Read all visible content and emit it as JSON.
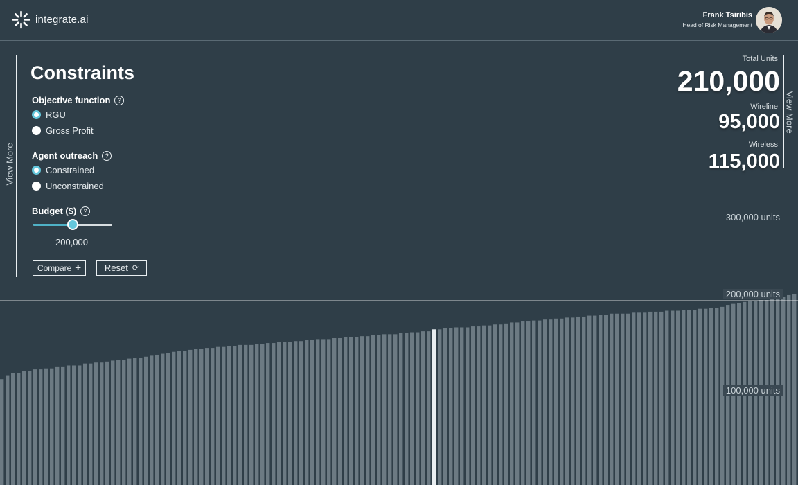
{
  "app": {
    "logo_text": "integrate.ai",
    "logo_icon": "sparkle-burst-icon"
  },
  "user": {
    "name": "Frank Tsiribis",
    "role": "Head of Risk Management"
  },
  "panel": {
    "view_more": "View More",
    "title": "Constraints",
    "objective": {
      "label": "Objective function",
      "options": [
        "RGU",
        "Gross Profit"
      ],
      "selected": "RGU"
    },
    "agent_outreach": {
      "label": "Agent outreach",
      "options": [
        "Constrained",
        "Unconstrained"
      ],
      "selected": "Constrained"
    },
    "budget": {
      "label": "Budget ($)",
      "value": "200,000",
      "slider_fraction": 0.5
    },
    "compare_label": "Compare",
    "reset_label": "Reset"
  },
  "stats": {
    "view_more": "View More",
    "total_label": "Total Units",
    "total_value": "210,000",
    "wireline_label": "Wireline",
    "wireline_value": "95,000",
    "wireless_label": "Wireless",
    "wireless_value": "115,000"
  },
  "axis": {
    "labels": [
      "300,000 units",
      "200,000 units",
      "100,000 units"
    ]
  },
  "colors": {
    "background": "#2f3e48",
    "bar": "#6c7a83",
    "highlight_bar": "#e9eef1",
    "accent": "#64c7dc"
  },
  "chart_data": {
    "type": "bar",
    "bar_count": 144,
    "ylim": [
      0,
      300000
    ],
    "highlight_index": 78,
    "values": [
      119000,
      123000,
      125000,
      125000,
      127000,
      127000,
      129000,
      129000,
      130000,
      130000,
      132000,
      132000,
      133000,
      133000,
      133000,
      135000,
      135000,
      136000,
      136000,
      137000,
      138000,
      139000,
      139000,
      140000,
      141000,
      141000,
      142000,
      143000,
      144000,
      145000,
      146000,
      147000,
      148000,
      148000,
      149000,
      150000,
      150000,
      151000,
      151000,
      152000,
      152000,
      153000,
      153000,
      154000,
      154000,
      154000,
      155000,
      155000,
      156000,
      156000,
      157000,
      157000,
      157000,
      158000,
      158000,
      159000,
      159000,
      160000,
      160000,
      160000,
      161000,
      161000,
      162000,
      162000,
      162000,
      163000,
      163000,
      164000,
      164000,
      165000,
      165000,
      165000,
      166000,
      166000,
      167000,
      167000,
      168000,
      168000,
      170000,
      170000,
      171000,
      171000,
      172000,
      172000,
      172000,
      173000,
      173000,
      174000,
      174000,
      175000,
      175000,
      176000,
      177000,
      177000,
      178000,
      178000,
      179000,
      179000,
      180000,
      180000,
      181000,
      181000,
      182000,
      182000,
      183000,
      183000,
      184000,
      184000,
      185000,
      185000,
      186000,
      186000,
      186000,
      186000,
      187000,
      187000,
      187000,
      188000,
      188000,
      188000,
      189000,
      189000,
      189000,
      190000,
      190000,
      190000,
      191000,
      191000,
      192000,
      192000,
      193000,
      195000,
      196000,
      197000,
      198000,
      199000,
      199000,
      200000,
      200000,
      201000,
      202000,
      203000,
      205000,
      206000
    ]
  }
}
